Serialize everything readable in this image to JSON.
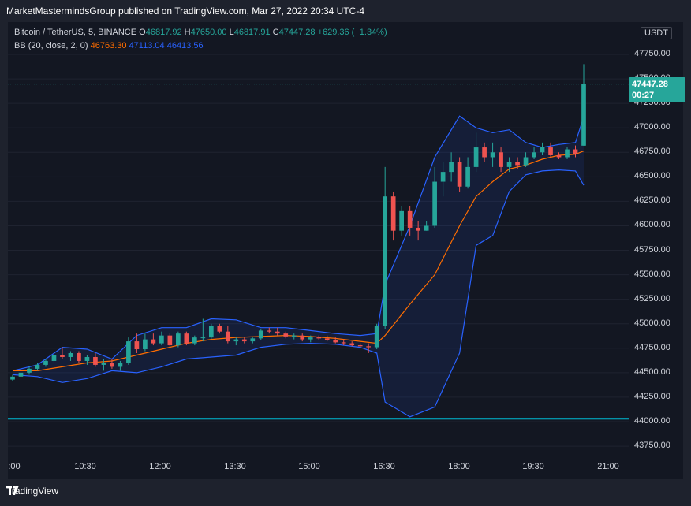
{
  "header": {
    "text": "MarketMastermindsGroup published on TradingView.com, Mar 27, 2022 20:34 UTC-4"
  },
  "legend": {
    "symbol": "Bitcoin / TetherUS, 5, BINANCE",
    "o_label": "O",
    "o_val": "46817.92",
    "h_label": "H",
    "h_val": "47650.00",
    "l_label": "L",
    "l_val": "46817.91",
    "c_label": "C",
    "c_val": "47447.28",
    "change": "+629.36 (+1.34%)",
    "bb_label": "BB (20, close, 2, 0)",
    "bb_mid": "46763.30",
    "bb_upper": "47113.04",
    "bb_lower": "46413.56"
  },
  "currency_badge": "USDT",
  "price_tag": {
    "price": "47447.28",
    "countdown": "00:27"
  },
  "footer": {
    "brand": "TradingView"
  },
  "colors": {
    "up": "#26a69a",
    "down": "#ef5350",
    "bb_band": "#2962ff",
    "bb_mid": "#ff6d00",
    "hline": "#00bcd4"
  },
  "chart_data": {
    "type": "candlestick",
    "title": "Bitcoin / TetherUS, 5, BINANCE",
    "y_ticks": [
      "47750.00",
      "47500.00",
      "47250.00",
      "47000.00",
      "46750.00",
      "46500.00",
      "46250.00",
      "46000.00",
      "45750.00",
      "45500.00",
      "45250.00",
      "45000.00",
      "44750.00",
      "44500.00",
      "44250.00",
      "44000.00",
      "43750.00"
    ],
    "x_ticks": [
      ":00",
      "10:30",
      "12:00",
      "13:30",
      "15:00",
      "16:30",
      "18:00",
      "19:30",
      "21:00"
    ],
    "ylim": [
      43700,
      48000
    ],
    "horizontal_line": 44030,
    "close_price": 47447.28,
    "candles": [
      {
        "t": "09:10",
        "o": 44430,
        "h": 44480,
        "l": 44410,
        "c": 44460
      },
      {
        "t": "09:20",
        "o": 44460,
        "h": 44520,
        "l": 44440,
        "c": 44500
      },
      {
        "t": "09:30",
        "o": 44500,
        "h": 44560,
        "l": 44480,
        "c": 44540
      },
      {
        "t": "09:40",
        "o": 44540,
        "h": 44600,
        "l": 44520,
        "c": 44580
      },
      {
        "t": "09:50",
        "o": 44580,
        "h": 44640,
        "l": 44560,
        "c": 44620
      },
      {
        "t": "10:00",
        "o": 44620,
        "h": 44700,
        "l": 44600,
        "c": 44680
      },
      {
        "t": "10:10",
        "o": 44680,
        "h": 44760,
        "l": 44640,
        "c": 44660
      },
      {
        "t": "10:20",
        "o": 44660,
        "h": 44720,
        "l": 44620,
        "c": 44700
      },
      {
        "t": "10:30",
        "o": 44700,
        "h": 44720,
        "l": 44600,
        "c": 44620
      },
      {
        "t": "10:40",
        "o": 44620,
        "h": 44680,
        "l": 44580,
        "c": 44660
      },
      {
        "t": "10:50",
        "o": 44660,
        "h": 44700,
        "l": 44560,
        "c": 44580
      },
      {
        "t": "11:00",
        "o": 44580,
        "h": 44640,
        "l": 44520,
        "c": 44600
      },
      {
        "t": "11:10",
        "o": 44600,
        "h": 44640,
        "l": 44540,
        "c": 44560
      },
      {
        "t": "11:20",
        "o": 44560,
        "h": 44620,
        "l": 44520,
        "c": 44600
      },
      {
        "t": "11:30",
        "o": 44600,
        "h": 44860,
        "l": 44580,
        "c": 44820
      },
      {
        "t": "11:40",
        "o": 44820,
        "h": 44900,
        "l": 44700,
        "c": 44740
      },
      {
        "t": "11:50",
        "o": 44740,
        "h": 44900,
        "l": 44720,
        "c": 44840
      },
      {
        "t": "12:00",
        "o": 44840,
        "h": 44900,
        "l": 44780,
        "c": 44800
      },
      {
        "t": "12:10",
        "o": 44800,
        "h": 44920,
        "l": 44780,
        "c": 44880
      },
      {
        "t": "12:20",
        "o": 44880,
        "h": 44900,
        "l": 44760,
        "c": 44780
      },
      {
        "t": "12:30",
        "o": 44780,
        "h": 44920,
        "l": 44760,
        "c": 44900
      },
      {
        "t": "12:40",
        "o": 44900,
        "h": 44920,
        "l": 44780,
        "c": 44800
      },
      {
        "t": "12:50",
        "o": 44800,
        "h": 44880,
        "l": 44780,
        "c": 44860
      },
      {
        "t": "13:00",
        "o": 44860,
        "h": 45050,
        "l": 44820,
        "c": 44860
      },
      {
        "t": "13:10",
        "o": 44860,
        "h": 45000,
        "l": 44840,
        "c": 44980
      },
      {
        "t": "13:20",
        "o": 44980,
        "h": 45000,
        "l": 44900,
        "c": 44920
      },
      {
        "t": "13:30",
        "o": 44920,
        "h": 44980,
        "l": 44800,
        "c": 44820
      },
      {
        "t": "13:40",
        "o": 44820,
        "h": 44860,
        "l": 44780,
        "c": 44840
      },
      {
        "t": "13:50",
        "o": 44840,
        "h": 44860,
        "l": 44800,
        "c": 44820
      },
      {
        "t": "14:00",
        "o": 44820,
        "h": 44860,
        "l": 44800,
        "c": 44850
      },
      {
        "t": "14:10",
        "o": 44850,
        "h": 44950,
        "l": 44830,
        "c": 44930
      },
      {
        "t": "14:20",
        "o": 44930,
        "h": 44960,
        "l": 44900,
        "c": 44920
      },
      {
        "t": "14:30",
        "o": 44920,
        "h": 44960,
        "l": 44880,
        "c": 44900
      },
      {
        "t": "14:40",
        "o": 44900,
        "h": 44920,
        "l": 44850,
        "c": 44870
      },
      {
        "t": "14:50",
        "o": 44870,
        "h": 44900,
        "l": 44840,
        "c": 44880
      },
      {
        "t": "15:00",
        "o": 44880,
        "h": 44900,
        "l": 44820,
        "c": 44840
      },
      {
        "t": "15:10",
        "o": 44840,
        "h": 44880,
        "l": 44810,
        "c": 44860
      },
      {
        "t": "15:20",
        "o": 44860,
        "h": 44880,
        "l": 44830,
        "c": 44850
      },
      {
        "t": "15:30",
        "o": 44850,
        "h": 44880,
        "l": 44820,
        "c": 44830
      },
      {
        "t": "15:40",
        "o": 44830,
        "h": 44860,
        "l": 44800,
        "c": 44810
      },
      {
        "t": "15:50",
        "o": 44810,
        "h": 44840,
        "l": 44780,
        "c": 44800
      },
      {
        "t": "16:00",
        "o": 44800,
        "h": 44820,
        "l": 44770,
        "c": 44780
      },
      {
        "t": "16:10",
        "o": 44780,
        "h": 44800,
        "l": 44750,
        "c": 44770
      },
      {
        "t": "16:20",
        "o": 44770,
        "h": 44800,
        "l": 44700,
        "c": 44760
      },
      {
        "t": "16:30",
        "o": 44760,
        "h": 45000,
        "l": 44740,
        "c": 44980
      },
      {
        "t": "16:35",
        "o": 44980,
        "h": 46600,
        "l": 44950,
        "c": 46300
      },
      {
        "t": "16:40",
        "o": 46300,
        "h": 46350,
        "l": 45850,
        "c": 45950
      },
      {
        "t": "16:50",
        "o": 45950,
        "h": 46200,
        "l": 45900,
        "c": 46150
      },
      {
        "t": "17:00",
        "o": 46150,
        "h": 46200,
        "l": 45900,
        "c": 45980
      },
      {
        "t": "17:10",
        "o": 45980,
        "h": 46050,
        "l": 45850,
        "c": 45950
      },
      {
        "t": "17:20",
        "o": 45950,
        "h": 46050,
        "l": 45950,
        "c": 46000
      },
      {
        "t": "17:30",
        "o": 46000,
        "h": 46600,
        "l": 45980,
        "c": 46450
      },
      {
        "t": "17:40",
        "o": 46450,
        "h": 46650,
        "l": 46300,
        "c": 46550
      },
      {
        "t": "17:50",
        "o": 46550,
        "h": 46750,
        "l": 46450,
        "c": 46650
      },
      {
        "t": "18:00",
        "o": 46650,
        "h": 46700,
        "l": 46350,
        "c": 46400
      },
      {
        "t": "18:10",
        "o": 46400,
        "h": 46700,
        "l": 46380,
        "c": 46600
      },
      {
        "t": "18:20",
        "o": 46600,
        "h": 46950,
        "l": 46550,
        "c": 46800
      },
      {
        "t": "18:30",
        "o": 46800,
        "h": 46850,
        "l": 46650,
        "c": 46700
      },
      {
        "t": "18:40",
        "o": 46700,
        "h": 46850,
        "l": 46600,
        "c": 46750
      },
      {
        "t": "18:50",
        "o": 46750,
        "h": 46800,
        "l": 46550,
        "c": 46600
      },
      {
        "t": "19:00",
        "o": 46600,
        "h": 46700,
        "l": 46550,
        "c": 46650
      },
      {
        "t": "19:10",
        "o": 46650,
        "h": 46700,
        "l": 46580,
        "c": 46620
      },
      {
        "t": "19:20",
        "o": 46620,
        "h": 46750,
        "l": 46600,
        "c": 46700
      },
      {
        "t": "19:30",
        "o": 46700,
        "h": 46800,
        "l": 46680,
        "c": 46750
      },
      {
        "t": "19:40",
        "o": 46750,
        "h": 46850,
        "l": 46720,
        "c": 46800
      },
      {
        "t": "19:50",
        "o": 46800,
        "h": 46850,
        "l": 46700,
        "c": 46720
      },
      {
        "t": "20:00",
        "o": 46720,
        "h": 46750,
        "l": 46680,
        "c": 46700
      },
      {
        "t": "20:10",
        "o": 46700,
        "h": 46800,
        "l": 46680,
        "c": 46780
      },
      {
        "t": "20:20",
        "o": 46780,
        "h": 46820,
        "l": 46700,
        "c": 46730
      },
      {
        "t": "20:30",
        "o": 46817.92,
        "h": 47650,
        "l": 46817.91,
        "c": 47447.28
      }
    ],
    "bb_upper": [
      [
        0,
        44520
      ],
      [
        3,
        44580
      ],
      [
        6,
        44760
      ],
      [
        9,
        44740
      ],
      [
        12,
        44640
      ],
      [
        15,
        44880
      ],
      [
        18,
        44960
      ],
      [
        21,
        44960
      ],
      [
        24,
        45050
      ],
      [
        27,
        45040
      ],
      [
        30,
        44960
      ],
      [
        33,
        44960
      ],
      [
        36,
        44930
      ],
      [
        39,
        44900
      ],
      [
        42,
        44880
      ],
      [
        44,
        44900
      ],
      [
        45,
        45400
      ],
      [
        48,
        46000
      ],
      [
        51,
        46700
      ],
      [
        54,
        47120
      ],
      [
        56,
        47000
      ],
      [
        58,
        46950
      ],
      [
        60,
        46980
      ],
      [
        62,
        46850
      ],
      [
        64,
        46800
      ],
      [
        66,
        46830
      ],
      [
        68,
        46850
      ],
      [
        69,
        47113.04
      ]
    ],
    "bb_middle": [
      [
        0,
        44520
      ],
      [
        3,
        44520
      ],
      [
        6,
        44560
      ],
      [
        9,
        44600
      ],
      [
        12,
        44620
      ],
      [
        15,
        44680
      ],
      [
        18,
        44740
      ],
      [
        21,
        44800
      ],
      [
        24,
        44840
      ],
      [
        27,
        44860
      ],
      [
        30,
        44870
      ],
      [
        33,
        44880
      ],
      [
        36,
        44870
      ],
      [
        39,
        44850
      ],
      [
        42,
        44820
      ],
      [
        44,
        44800
      ],
      [
        45,
        44880
      ],
      [
        48,
        45200
      ],
      [
        51,
        45500
      ],
      [
        54,
        46000
      ],
      [
        56,
        46300
      ],
      [
        58,
        46450
      ],
      [
        60,
        46580
      ],
      [
        62,
        46620
      ],
      [
        64,
        46680
      ],
      [
        66,
        46720
      ],
      [
        68,
        46730
      ],
      [
        69,
        46763.3
      ]
    ],
    "bb_lower": [
      [
        0,
        44480
      ],
      [
        3,
        44460
      ],
      [
        6,
        44400
      ],
      [
        9,
        44440
      ],
      [
        12,
        44520
      ],
      [
        15,
        44500
      ],
      [
        18,
        44560
      ],
      [
        21,
        44640
      ],
      [
        24,
        44660
      ],
      [
        27,
        44680
      ],
      [
        30,
        44760
      ],
      [
        33,
        44790
      ],
      [
        36,
        44800
      ],
      [
        39,
        44790
      ],
      [
        42,
        44760
      ],
      [
        44,
        44700
      ],
      [
        45,
        44200
      ],
      [
        48,
        44050
      ],
      [
        51,
        44150
      ],
      [
        54,
        44700
      ],
      [
        56,
        45800
      ],
      [
        58,
        45900
      ],
      [
        60,
        46350
      ],
      [
        62,
        46520
      ],
      [
        64,
        46560
      ],
      [
        66,
        46570
      ],
      [
        68,
        46560
      ],
      [
        69,
        46413.56
      ]
    ]
  }
}
